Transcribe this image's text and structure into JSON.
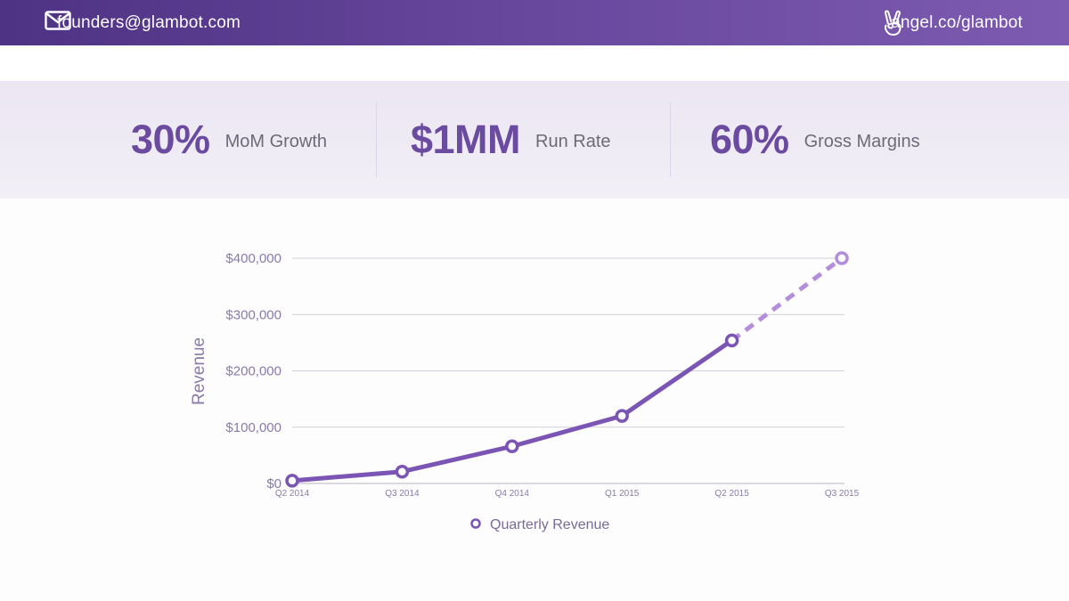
{
  "header": {
    "email": "founders@glambot.com",
    "angel": "angel.co/glambot",
    "icons": {
      "email": "mail-icon",
      "angel": "angellist-peace-icon"
    }
  },
  "stats": [
    {
      "value": "30%",
      "label": "MoM Growth"
    },
    {
      "value": "$1MM",
      "label": "Run Rate"
    },
    {
      "value": "60%",
      "label": "Gross Margins"
    }
  ],
  "colors": {
    "primary": "#6b4b9f",
    "line": "#7b55b3",
    "projected": "#b38fdb",
    "header_bg": "#5a3b8f"
  },
  "chart_data": {
    "type": "line",
    "title": "",
    "xlabel": "",
    "ylabel": "Revenue",
    "categories": [
      "Q2 2014",
      "Q3 2014",
      "Q4 2014",
      "Q1 2015",
      "Q2 2015",
      "Q3 2015"
    ],
    "yticks": [
      "$0",
      "$100,000",
      "$200,000",
      "$300,000",
      "$400,000"
    ],
    "ylim": [
      0,
      400000
    ],
    "grid": true,
    "legend_position": "bottom",
    "series": [
      {
        "name": "Quarterly Revenue",
        "values": [
          5000,
          21000,
          66000,
          120000,
          254000,
          400000
        ],
        "projected_from_index": 4
      }
    ]
  }
}
